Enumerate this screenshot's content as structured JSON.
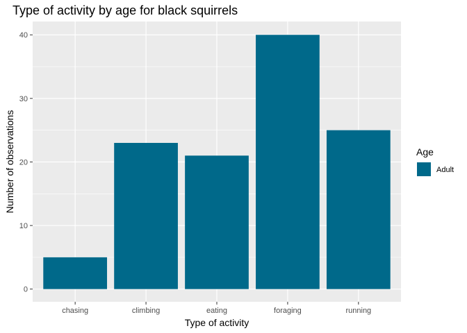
{
  "chart_data": {
    "type": "bar",
    "title": "Type of activity by age for black squirrels",
    "xlabel": "Type of activity",
    "ylabel": "Number of observations",
    "categories": [
      "chasing",
      "climbing",
      "eating",
      "foraging",
      "running"
    ],
    "series": [
      {
        "name": "Adult",
        "values": [
          5,
          23,
          21,
          40,
          25
        ]
      }
    ],
    "ylim": [
      -2,
      42.1
    ],
    "yticks": [
      0,
      10,
      20,
      30,
      40
    ],
    "grid": true,
    "legend": {
      "title": "Age",
      "position": "right"
    },
    "colors": {
      "bar": "#00698a",
      "panel": "#ebebeb",
      "grid_major": "#ffffff"
    }
  }
}
